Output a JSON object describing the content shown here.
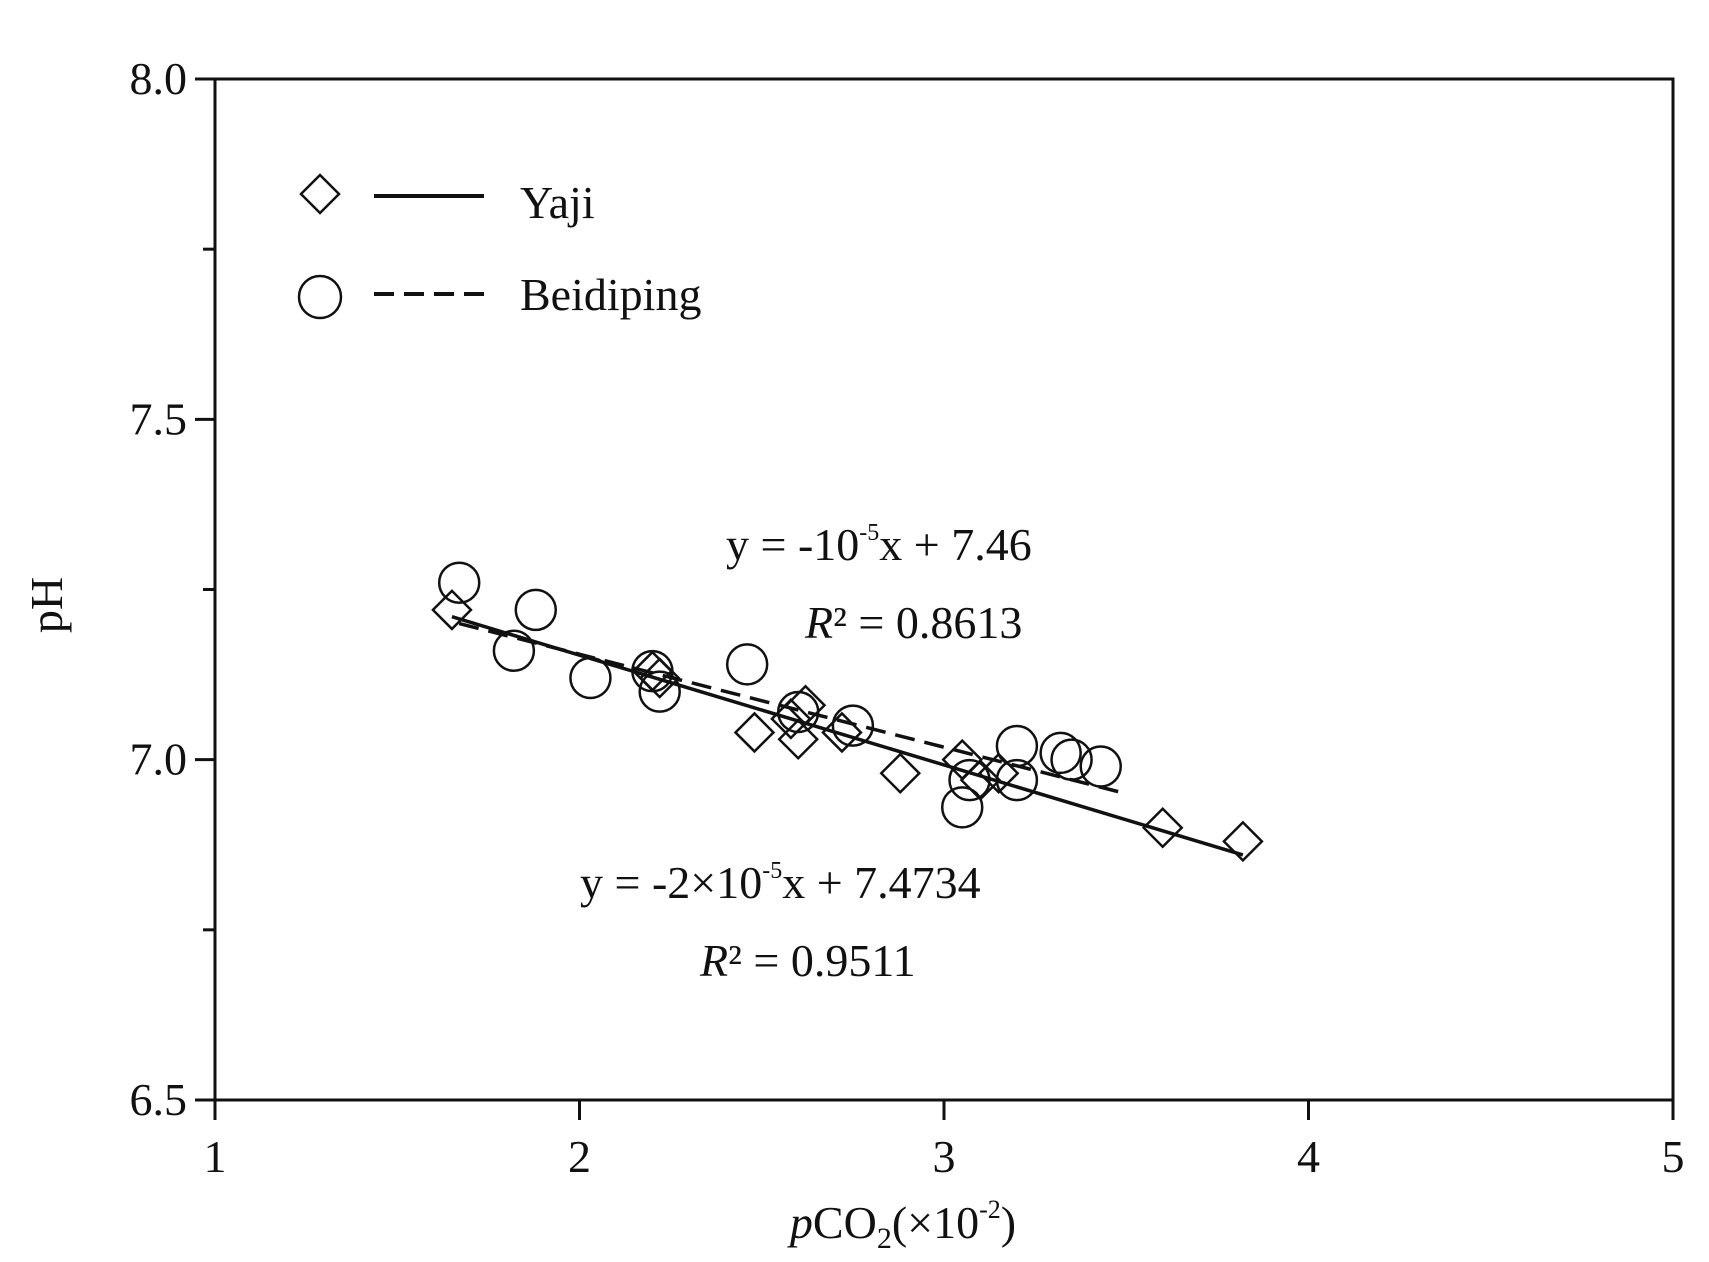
{
  "chart_data": {
    "type": "scatter",
    "title": "",
    "xlabel": {
      "prefix": "p",
      "main": "CO",
      "sub": "2",
      "suffix": "(×10",
      "sup": "-2",
      "close": ")"
    },
    "ylabel": "pH",
    "xlim": [
      1,
      5
    ],
    "ylim": [
      6.5,
      8.0
    ],
    "x_ticks": [
      1,
      2,
      3,
      4,
      5
    ],
    "x_tick_labels": [
      "1",
      "2",
      "3",
      "4",
      "5"
    ],
    "y_ticks": [
      6.5,
      7.0,
      7.5,
      8.0
    ],
    "y_tick_labels": [
      "6.5",
      "7.0",
      "7.5",
      "8.0"
    ],
    "y_minor_ticks": [
      6.75,
      7.25,
      7.75
    ],
    "grid": false,
    "legend_position": "top-left",
    "series": [
      {
        "name": "Yaji",
        "marker": "diamond",
        "line_style": "solid",
        "points": [
          [
            1.65,
            7.22
          ],
          [
            2.2,
            7.13
          ],
          [
            2.22,
            7.12
          ],
          [
            2.48,
            7.04
          ],
          [
            2.58,
            7.06
          ],
          [
            2.6,
            7.03
          ],
          [
            2.62,
            7.08
          ],
          [
            2.72,
            7.04
          ],
          [
            2.88,
            6.98
          ],
          [
            3.05,
            7.0
          ],
          [
            3.1,
            6.97
          ],
          [
            3.15,
            6.98
          ],
          [
            3.6,
            6.9
          ],
          [
            3.82,
            6.88
          ]
        ],
        "fit_line": [
          [
            1.65,
            7.21
          ],
          [
            3.82,
            6.86
          ]
        ]
      },
      {
        "name": "Beidiping",
        "marker": "circle",
        "line_style": "dashed",
        "points": [
          [
            1.67,
            7.26
          ],
          [
            1.82,
            7.16
          ],
          [
            1.88,
            7.22
          ],
          [
            2.03,
            7.12
          ],
          [
            2.2,
            7.13
          ],
          [
            2.22,
            7.1
          ],
          [
            2.46,
            7.14
          ],
          [
            2.6,
            7.07
          ],
          [
            2.75,
            7.05
          ],
          [
            3.05,
            6.93
          ],
          [
            3.07,
            6.97
          ],
          [
            3.2,
            7.02
          ],
          [
            3.2,
            6.97
          ],
          [
            3.32,
            7.01
          ],
          [
            3.35,
            7.0
          ],
          [
            3.43,
            6.99
          ]
        ],
        "fit_line": [
          [
            1.67,
            7.2
          ],
          [
            3.5,
            6.95
          ]
        ]
      }
    ],
    "annotations": [
      {
        "series": "Beidiping",
        "equation": {
          "a": "y = -10",
          "sup": "-5",
          "b": "x + 7.46"
        },
        "r2": {
          "r": "R",
          "rest": "² = 0.8613"
        }
      },
      {
        "series": "Yaji",
        "equation": {
          "a": "y = -2×10",
          "sup": "-5",
          "b": "x + 7.4734"
        },
        "r2": {
          "r": "R",
          "rest": "² = 0.9511"
        }
      }
    ]
  },
  "colors": {
    "ink": "#111111",
    "background": "#ffffff"
  }
}
